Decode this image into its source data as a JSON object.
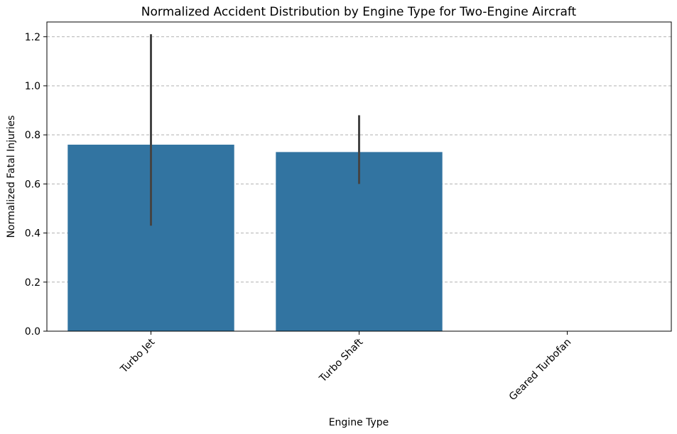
{
  "chart_data": {
    "type": "bar",
    "title": "Normalized Accident Distribution by Engine Type for Two-Engine Aircraft",
    "xlabel": "Engine Type",
    "ylabel": "Normalized Fatal Injuries",
    "categories": [
      "Turbo Jet",
      "Turbo Shaft",
      "Geared Turbofan"
    ],
    "values": [
      0.76,
      0.73,
      0.0
    ],
    "error_low": [
      0.43,
      0.6,
      null
    ],
    "error_high": [
      1.21,
      0.88,
      null
    ],
    "ylim": [
      0,
      1.26
    ],
    "yticks": [
      "0.0",
      "0.2",
      "0.4",
      "0.6",
      "0.8",
      "1.0",
      "1.2"
    ],
    "ytick_values": [
      0,
      0.2,
      0.4,
      0.6,
      0.8,
      1.0,
      1.2
    ],
    "grid": "y-dashed",
    "bar_color": "#3274a1",
    "error_color": "#444444"
  }
}
